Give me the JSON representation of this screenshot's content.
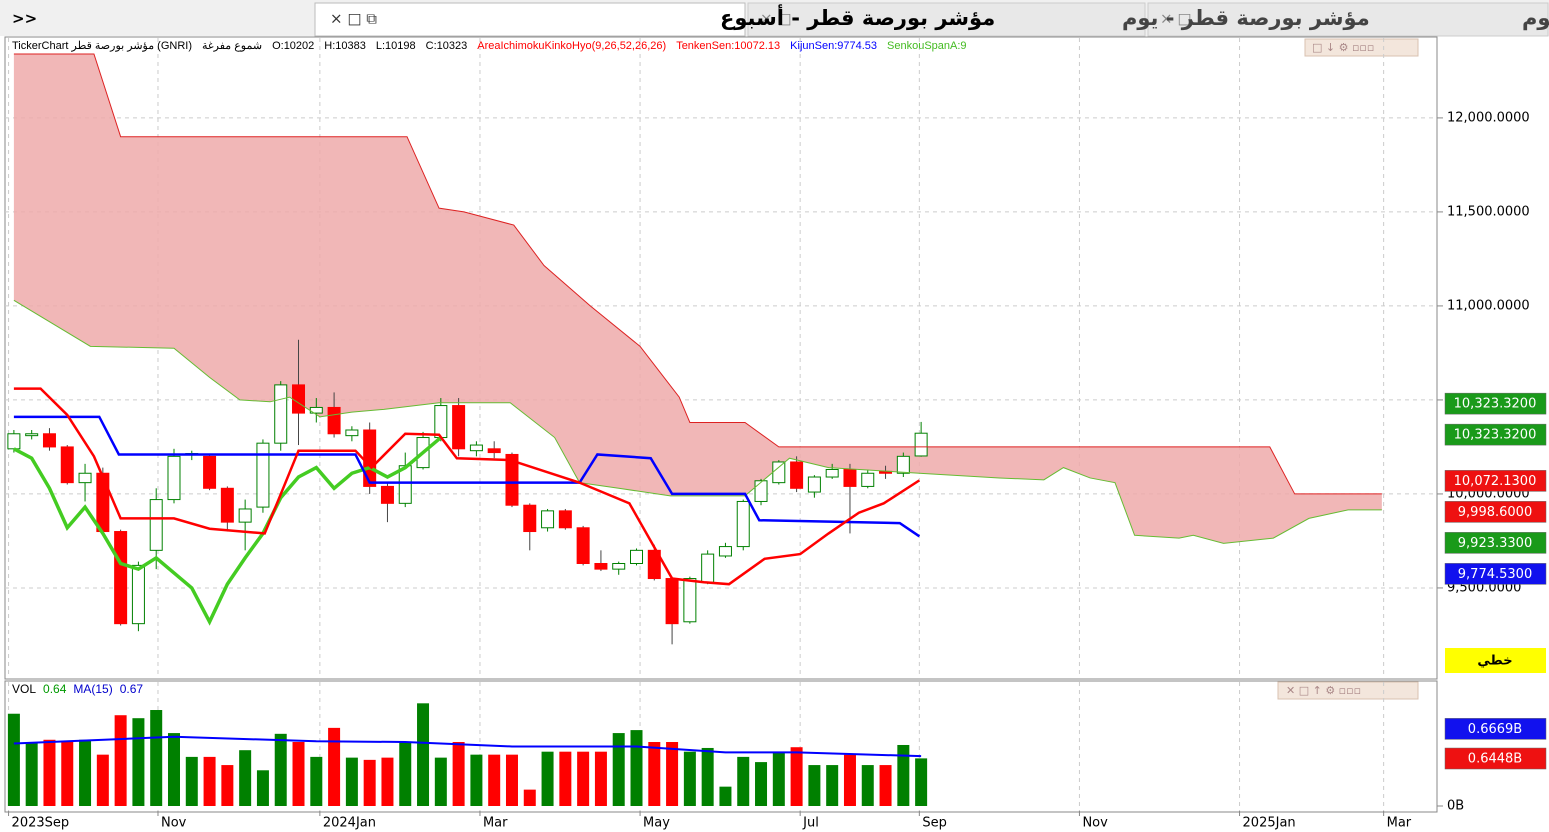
{
  "tabs": {
    "more": ">>",
    "items": [
      "مؤشر بورصة قطر - أسبوع",
      "مؤشر بورصة قطر - يوم",
      "مؤشر بورصة قطر - يوم"
    ]
  },
  "chart_data": [
    {
      "type": "candlestick",
      "header": [
        "TickerChart مؤشر بورصة قطر (GNRI)",
        "شموع مفرغة",
        "O:10202",
        "H:10383",
        "L:10198",
        "C:10323"
      ],
      "indicator": [
        {
          "text": "AreaIchimokuKinkoHyo(9,26,52,26,26)",
          "color": "#ff0000"
        },
        {
          "text": "TenkenSen:10072.13",
          "color": "#ff0000"
        },
        {
          "text": "KijunSen:9774.53",
          "color": "#0000ff"
        },
        {
          "text": "SenkouSpanA:9",
          "color": "#44bb22"
        }
      ],
      "x": [
        0,
        1,
        2,
        3,
        4,
        5,
        6,
        7,
        8,
        9,
        10,
        11,
        12,
        13,
        14,
        15,
        16,
        17,
        18,
        19,
        20,
        21,
        22,
        23,
        24,
        25,
        26,
        27,
        28,
        29,
        30,
        31,
        32,
        33,
        34,
        35,
        36,
        37,
        38,
        39,
        40,
        41,
        42,
        43,
        44,
        45,
        46,
        47,
        48,
        49,
        50,
        51
      ],
      "open": [
        10240,
        10310,
        10320,
        10250,
        10060,
        10110,
        9800,
        9310,
        9700,
        9970,
        10210,
        10200,
        10030,
        9850,
        9930,
        10270,
        10580,
        10430,
        10460,
        10310,
        10340,
        10040,
        9950,
        10140,
        10300,
        10470,
        10230,
        10240,
        10210,
        9940,
        9820,
        9910,
        9820,
        9630,
        9600,
        9630,
        9700,
        9550,
        9320,
        9530,
        9670,
        9720,
        9960,
        10060,
        10170,
        10010,
        10090,
        10130,
        10040,
        10120,
        10110,
        10202
      ],
      "high": [
        10340,
        10340,
        10350,
        10260,
        10160,
        10140,
        9810,
        9640,
        10030,
        10240,
        10230,
        10210,
        10040,
        9970,
        10290,
        10600,
        10820,
        10510,
        10540,
        10360,
        10380,
        10060,
        10220,
        10330,
        10510,
        10510,
        10280,
        10280,
        10220,
        9950,
        9920,
        9920,
        9830,
        9700,
        9640,
        9710,
        9730,
        9560,
        9560,
        9700,
        9740,
        9970,
        10080,
        10180,
        10200,
        10100,
        10160,
        10160,
        10130,
        10150,
        10220,
        10383
      ],
      "low": [
        10220,
        10290,
        10230,
        10050,
        9960,
        9780,
        9300,
        9270,
        9600,
        9950,
        10180,
        10020,
        9800,
        9700,
        9900,
        10230,
        10260,
        10380,
        10300,
        10280,
        10000,
        9850,
        9930,
        10130,
        10280,
        10200,
        10200,
        10190,
        9930,
        9700,
        9800,
        9810,
        9620,
        9590,
        9570,
        9620,
        9540,
        9200,
        9310,
        9520,
        9660,
        9700,
        9940,
        10050,
        10010,
        9980,
        10080,
        9790,
        10030,
        10080,
        10090,
        10198
      ],
      "close": [
        10320,
        10320,
        10250,
        10060,
        10110,
        9800,
        9310,
        9620,
        9970,
        10200,
        10215,
        10030,
        9850,
        9920,
        10270,
        10580,
        10430,
        10460,
        10320,
        10340,
        10040,
        9950,
        10150,
        10300,
        10470,
        10240,
        10260,
        10220,
        9940,
        9800,
        9910,
        9820,
        9630,
        9600,
        9630,
        9700,
        9550,
        9310,
        9550,
        9680,
        9720,
        9960,
        10070,
        10170,
        10030,
        10090,
        10130,
        10040,
        10110,
        10110,
        10200,
        10323
      ],
      "up_color": "#008000",
      "down_color": "#ff0000",
      "cloud_color": "#eeaaaa",
      "lines": [
        {
          "color": "#66bb33",
          "width": 1,
          "x": [
            0,
            4.3,
            9,
            11,
            12.7,
            14.4,
            15.5,
            17.2,
            19,
            20.8,
            23.9,
            27.9,
            30.4,
            31.8,
            34,
            36.9,
            41.1,
            43.6,
            45.8,
            50.9,
            55.4,
            57.9,
            59,
            60.5,
            61.9,
            63,
            65.5,
            66.3,
            68,
            70.8,
            72.8,
            75,
            76.9
          ],
          "values": [
            11030,
            10785,
            10775,
            10620,
            10500,
            10490,
            10515,
            10410,
            10435,
            10450,
            10485,
            10485,
            10300,
            10060,
            10030,
            9990,
            9990,
            10190,
            10140,
            10110,
            10085,
            10075,
            10140,
            10085,
            10060,
            9780,
            9765,
            9780,
            9737,
            9765,
            9870,
            9915,
            9915
          ]
        },
        {
          "color": "#dd2222",
          "width": 1,
          "x": [
            0,
            4.5,
            6,
            22.1,
            23.9,
            25.3,
            28.1,
            29.8,
            32.4,
            35.2,
            37.4,
            38,
            41.1,
            43,
            70.6,
            72,
            76.9
          ],
          "values": [
            12340,
            12340,
            11900,
            11900,
            11520,
            11500,
            11430,
            11215,
            11000,
            10785,
            10515,
            10380,
            10380,
            10250,
            10250,
            10000,
            10000
          ]
        },
        {
          "color": "#44cc22",
          "width": 3.5,
          "x": [
            0,
            1,
            2,
            3,
            4,
            5,
            6,
            7,
            8,
            9,
            10,
            11,
            12,
            13,
            14,
            15,
            16,
            17,
            18,
            19,
            20,
            21,
            22,
            23,
            24
          ],
          "values": [
            10240,
            10190,
            10030,
            9820,
            9930,
            9790,
            9630,
            9600,
            9660,
            9580,
            9500,
            9320,
            9520,
            9660,
            9790,
            9980,
            10090,
            10140,
            10030,
            10110,
            10140,
            10090,
            10140,
            10220,
            10300
          ]
        },
        {
          "color": "#0000ff",
          "width": 2.5,
          "x": [
            0,
            4.8,
            5.9,
            19.2,
            20,
            31.8,
            32.8,
            35.8,
            37,
            41.1,
            41.9,
            49.8,
            50.9
          ],
          "values": [
            10410,
            10410,
            10210,
            10210,
            10060,
            10060,
            10210,
            10190,
            10000,
            10000,
            9860,
            9845,
            9774.53
          ]
        },
        {
          "color": "#ff0000",
          "width": 2.5,
          "x": [
            0,
            1.5,
            3,
            4.5,
            6,
            9,
            11,
            14.1,
            16,
            19.2,
            20.1,
            22,
            23.9,
            24.9,
            27.9,
            31.8,
            34.6,
            37,
            38.8,
            40.2,
            42.2,
            44.2,
            45.8,
            47.5,
            48.9,
            50.9
          ],
          "values": [
            10560,
            10560,
            10420,
            10200,
            9870,
            9870,
            9815,
            9790,
            10230,
            10230,
            10140,
            10320,
            10315,
            10190,
            10180,
            10060,
            9950,
            9550,
            9530,
            9520,
            9655,
            9680,
            9790,
            9900,
            9950,
            10072.13
          ]
        }
      ],
      "cloud": [
        0,
        1
      ],
      "xlim": [
        -0.5,
        80
      ],
      "ylim": [
        9021,
        12425
      ],
      "yticks": [
        {
          "value": 9500,
          "label": "9,500.0000"
        },
        {
          "value": 10000,
          "label": "10,000.0000"
        },
        {
          "value": 10500,
          "label": "10,500.0000"
        },
        {
          "value": 11000,
          "label": "11,000.0000"
        },
        {
          "value": 11500,
          "label": "11,500.0000"
        },
        {
          "value": 12000,
          "label": "12,000.0000"
        }
      ],
      "xticks": [
        {
          "value": -0.3,
          "label": "2023Sep"
        },
        {
          "value": 8.1,
          "label": "Nov"
        },
        {
          "value": 17.2,
          "label": "2024Jan"
        },
        {
          "value": 26.2,
          "label": "Mar"
        },
        {
          "value": 35.2,
          "label": "May"
        },
        {
          "value": 44.2,
          "label": "Jul"
        },
        {
          "value": 50.9,
          "label": "Sep"
        },
        {
          "value": 59.9,
          "label": "Nov"
        },
        {
          "value": 68.9,
          "label": "2025Jan"
        },
        {
          "value": 77,
          "label": "Mar"
        }
      ],
      "price_tags": [
        {
          "value": 10323.32,
          "label": "10,323.3200",
          "color": "#1a9a1a"
        },
        {
          "value": 10323.32,
          "label": "10,323.3200",
          "color": "#1a9a1a"
        },
        {
          "value": 10072.13,
          "label": "10,072.1300",
          "color": "#ee1111"
        },
        {
          "value": 9998.6,
          "label": "9,998.6000",
          "color": "#ee1111"
        },
        {
          "value": 9923.33,
          "label": "9,923.3300",
          "color": "#1a9a1a"
        },
        {
          "value": 9774.53,
          "label": "9,774.5300",
          "color": "#1111ee"
        }
      ],
      "mode_label": "خطي",
      "grid": true
    },
    {
      "type": "volume",
      "header": [
        {
          "text": "VOL",
          "color": "#000000"
        },
        {
          "text": "0.64",
          "color": "#009900"
        },
        {
          "text": "MA(15)",
          "color": "#0000cc"
        },
        {
          "text": "0.67",
          "color": "#0000cc"
        }
      ],
      "x": [
        0,
        1,
        2,
        3,
        4,
        5,
        6,
        7,
        8,
        9,
        10,
        11,
        12,
        13,
        14,
        15,
        16,
        17,
        18,
        19,
        20,
        21,
        22,
        23,
        24,
        25,
        26,
        27,
        28,
        29,
        30,
        31,
        32,
        33,
        34,
        35,
        36,
        37,
        38,
        39,
        40,
        41,
        42,
        43,
        44,
        45,
        46,
        47,
        48,
        49,
        50,
        51
      ],
      "values": [
        1.24,
        0.85,
        0.89,
        0.86,
        0.89,
        0.69,
        1.22,
        1.18,
        1.29,
        0.98,
        0.66,
        0.66,
        0.55,
        0.75,
        0.48,
        0.97,
        0.86,
        0.66,
        1.05,
        0.65,
        0.62,
        0.65,
        0.86,
        1.38,
        0.65,
        0.86,
        0.69,
        0.69,
        0.69,
        0.22,
        0.73,
        0.73,
        0.73,
        0.73,
        0.98,
        1.02,
        0.86,
        0.86,
        0.73,
        0.78,
        0.26,
        0.66,
        0.59,
        0.73,
        0.79,
        0.55,
        0.55,
        0.69,
        0.55,
        0.55,
        0.82,
        0.64
      ],
      "ma": {
        "color": "#0000ff",
        "x": [
          0,
          9,
          17,
          22,
          28,
          35,
          40,
          44,
          51
        ],
        "values": [
          0.84,
          0.93,
          0.87,
          0.86,
          0.8,
          0.8,
          0.72,
          0.72,
          0.67
        ]
      },
      "ylim": [
        0,
        1.653
      ],
      "yticks": [
        {
          "value": 0,
          "label": "0B"
        }
      ],
      "tags": [
        {
          "value": 0.6669,
          "label": "0.6669B",
          "color": "#1111ee"
        },
        {
          "value": 0.6448,
          "label": "0.6448B",
          "color": "#ee1111"
        }
      ]
    }
  ]
}
